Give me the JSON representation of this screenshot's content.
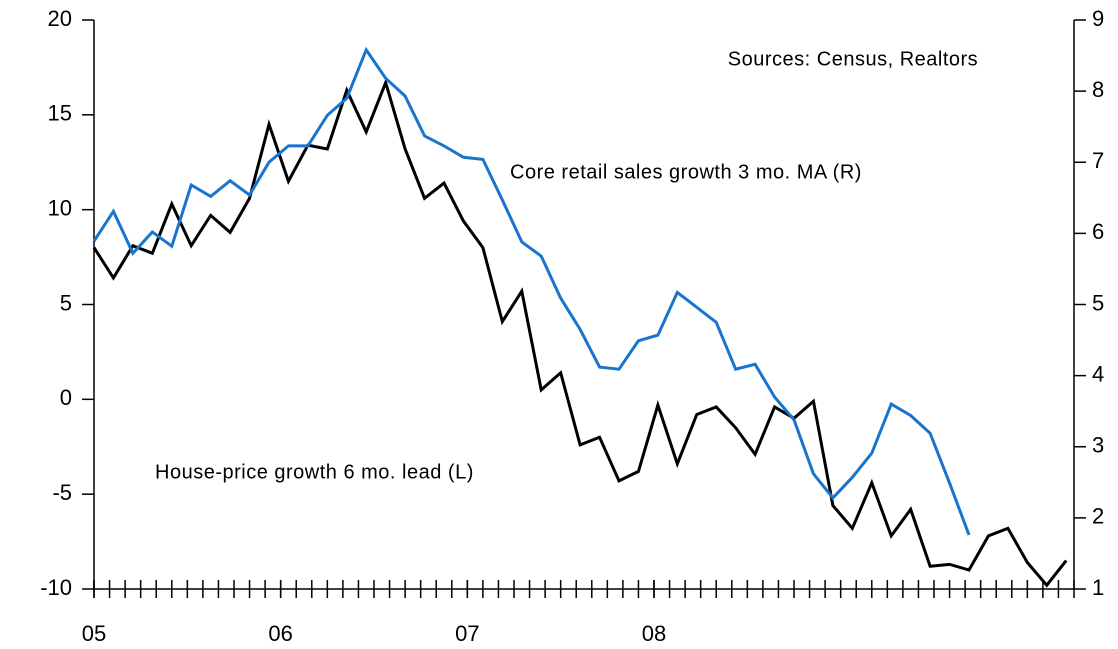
{
  "chart_data": {
    "type": "line",
    "annotations": [
      "Sources: Census, Realtors"
    ],
    "x": [
      0,
      1.25,
      2.5,
      3.75,
      5,
      6.25,
      7.5,
      8.75,
      10,
      11.25,
      12.5,
      13.75,
      15,
      16.25,
      17.5,
      18.75,
      20,
      21.25,
      22.5,
      23.75,
      25,
      26.25,
      27.5,
      28.75,
      30,
      31.25,
      32.5,
      33.75,
      35,
      36.25,
      37.5,
      38.75,
      40,
      41.25,
      42.5,
      43.75,
      45,
      46.25,
      47.5,
      48.75,
      50,
      51.25,
      52.5,
      53.75,
      55,
      56.25,
      57.5,
      58.75,
      60,
      61.25,
      62.5
    ],
    "xlim": [
      0,
      63
    ],
    "xticks": [
      {
        "value": 0,
        "label": "05"
      },
      {
        "value": 12,
        "label": "06"
      },
      {
        "value": 24,
        "label": "07"
      },
      {
        "value": 36,
        "label": "08"
      }
    ],
    "xminor_ticks": [
      0,
      1,
      2,
      3,
      4,
      5,
      6,
      7,
      8,
      9,
      10,
      11,
      12,
      13,
      14,
      15,
      16,
      17,
      18,
      19,
      20,
      21,
      22,
      23,
      24,
      25,
      26,
      27,
      28,
      29,
      30,
      31,
      32,
      33,
      34,
      35,
      36,
      37,
      38,
      39,
      40,
      41,
      42,
      43,
      44,
      45,
      46,
      47,
      48,
      49,
      50,
      51,
      52,
      53,
      54,
      55,
      56,
      57,
      58,
      59,
      60,
      61,
      62,
      63
    ],
    "ylim": [
      -10,
      20
    ],
    "yticks": [
      -10,
      -5,
      0,
      5,
      10,
      15,
      20
    ],
    "y2lim": [
      1,
      9
    ],
    "y2ticks": [
      1,
      2,
      3,
      4,
      5,
      6,
      7,
      8,
      9
    ],
    "grid": false,
    "series": [
      {
        "name": "House-price growth 6 mo. lead (L)",
        "color": "#000000",
        "axis": "y",
        "values": [
          8.0,
          6.4,
          8.1,
          7.7,
          10.3,
          8.1,
          9.7,
          8.8,
          10.6,
          14.5,
          11.5,
          13.4,
          13.2,
          16.3,
          14.1,
          16.7,
          13.2,
          10.6,
          11.4,
          9.4,
          8.0,
          4.1,
          5.7,
          0.5,
          1.4,
          -2.4,
          -2.0,
          -4.3,
          -3.8,
          -0.3,
          -3.4,
          -0.8,
          -0.4,
          -1.5,
          -2.9,
          -0.4,
          -1.0,
          -0.1,
          -5.6,
          -6.8,
          -4.4,
          -7.2,
          -5.8,
          -8.8,
          -8.7,
          -9.0,
          -7.2,
          -6.8,
          -8.6,
          -9.8,
          -8.5
        ]
      },
      {
        "name": "Core retail sales growth 3 mo. MA (R)",
        "color": "#1874cd",
        "axis": "y2",
        "values": [
          5.89,
          6.31,
          5.72,
          6.02,
          5.82,
          6.68,
          6.52,
          6.74,
          6.54,
          7.0,
          7.23,
          7.23,
          7.66,
          7.9,
          8.58,
          8.18,
          7.93,
          7.37,
          7.23,
          7.07,
          7.04,
          6.47,
          5.88,
          5.68,
          5.09,
          4.65,
          4.12,
          4.09,
          4.49,
          4.57,
          5.17,
          4.96,
          4.75,
          4.09,
          4.16,
          3.7,
          3.38,
          2.62,
          2.28,
          2.57,
          2.91,
          3.6,
          3.44,
          3.19,
          2.49,
          1.76,
          null,
          null,
          null,
          null,
          null
        ]
      }
    ]
  }
}
